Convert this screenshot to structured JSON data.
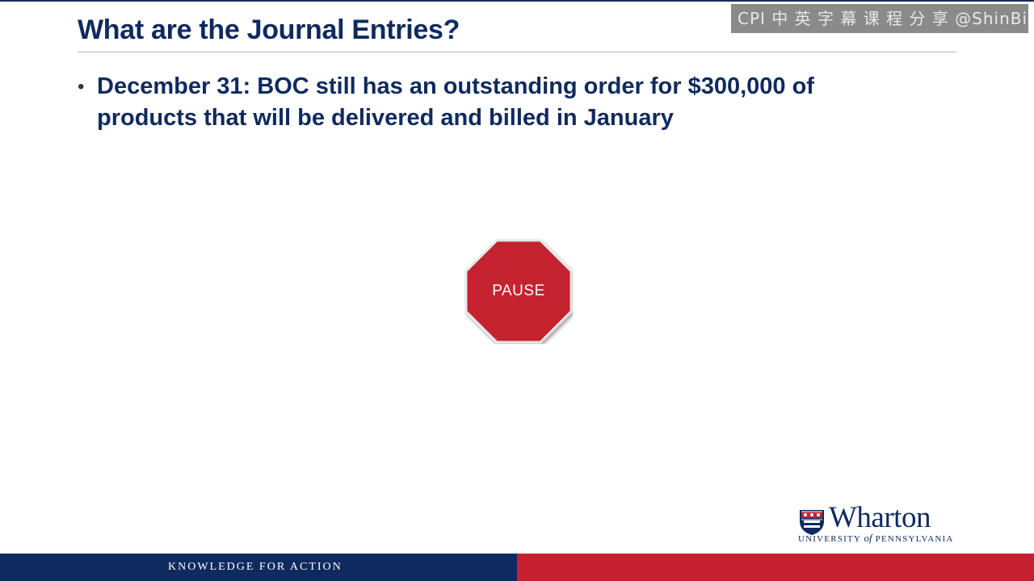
{
  "watermark": {
    "text": "CPI 中 英 字 幕 课 程 分 享 @ShinBill.com"
  },
  "slide": {
    "title": "What are the Journal Entries?",
    "bullets": [
      "December 31: BOC still has an outstanding order for $300,000 of products that will be delivered and billed in January"
    ],
    "pause_label": "PAUSE",
    "pause_color": "#c4202f"
  },
  "logo": {
    "wordmark": "Wharton",
    "sub_before": "UNIVERSITY ",
    "sub_of": "of",
    "sub_after": " PENNSYLVANIA",
    "color": "#0f2a5e"
  },
  "footer": {
    "tagline": "KNOWLEDGE FOR ACTION",
    "left_color": "#0f2a5e",
    "right_color": "#c4202f"
  }
}
